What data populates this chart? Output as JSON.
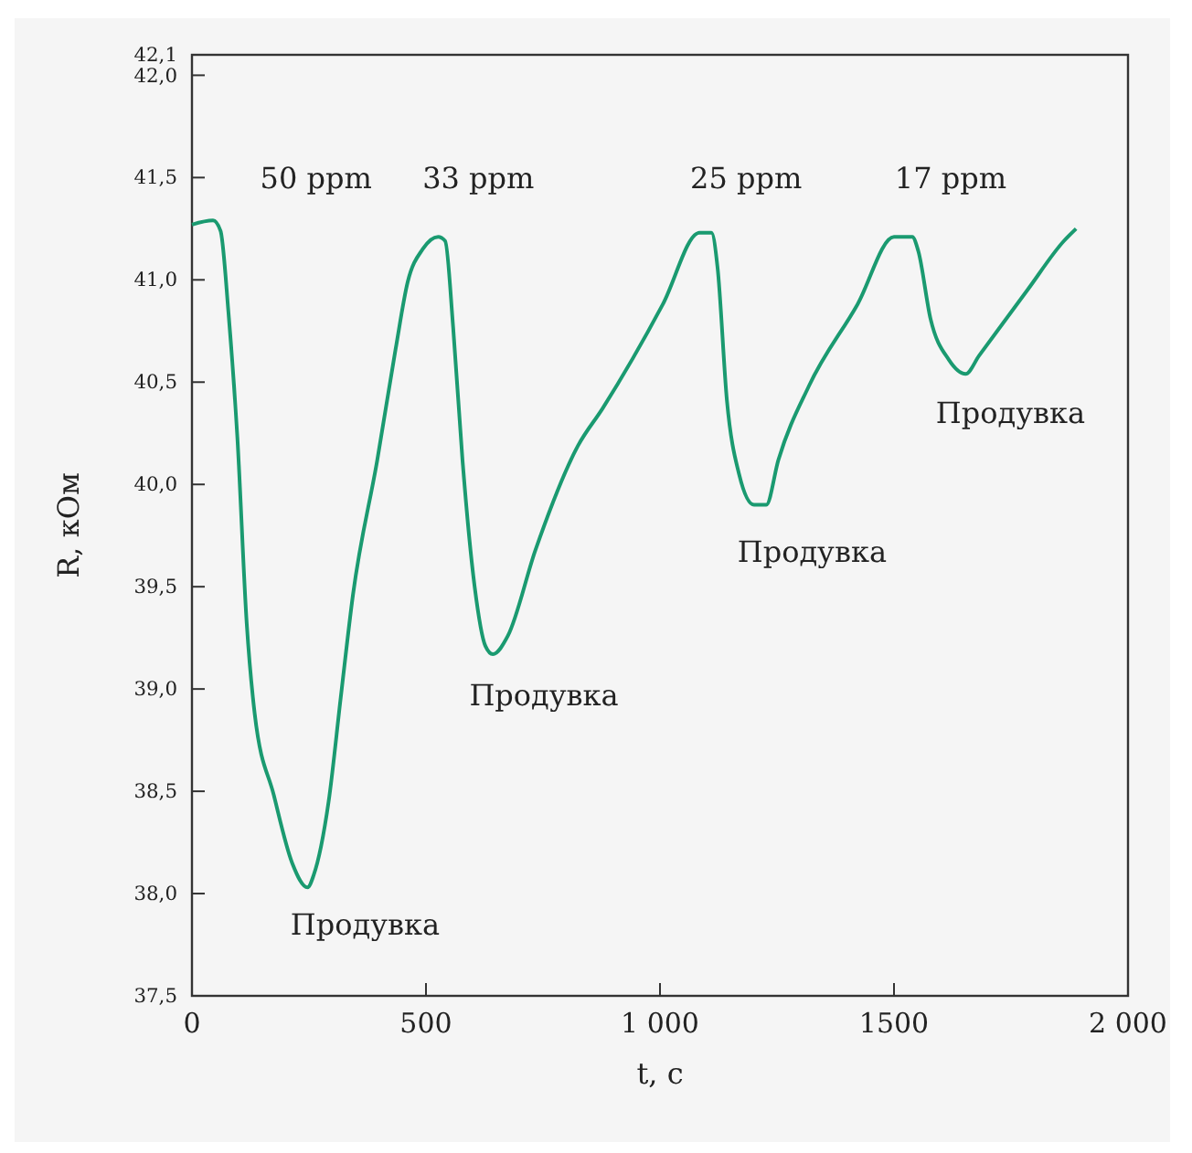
{
  "chart_data": {
    "type": "line",
    "xlabel": "t, с",
    "ylabel": "R, кОм",
    "xlim": [
      0,
      2000
    ],
    "xticks": [
      0,
      500,
      {
        "value": 1000,
        "label": "1 000"
      },
      1500,
      {
        "value": 2000,
        "label": "2 000"
      }
    ],
    "ylim": [
      37.5,
      42.1
    ],
    "yticks": [
      {
        "value": 37.5,
        "label": "37,5"
      },
      {
        "value": 38,
        "label": "38,0"
      },
      {
        "value": 38.5,
        "label": "38,5"
      },
      {
        "value": 39,
        "label": "39,0"
      },
      {
        "value": 39.5,
        "label": "39,5"
      },
      {
        "value": 40,
        "label": "40,0"
      },
      {
        "value": 40.5,
        "label": "40,5"
      },
      {
        "value": 41,
        "label": "41,0"
      },
      {
        "value": 41.5,
        "label": "41,5"
      },
      {
        "value": 42,
        "label": "42,0"
      },
      {
        "value": 42.1,
        "label": "42,1"
      }
    ],
    "grid": false,
    "marker": "none",
    "line_style": "solid",
    "series": [
      {
        "color": "#1a9a70",
        "x": [
          0,
          45,
          61,
          78,
          97,
          117,
          134,
          175,
          214,
          247,
          260,
          292,
          318,
          344,
          396,
          435,
          461,
          493,
          526,
          541,
          558,
          578,
          604,
          627,
          643,
          675,
          734,
          825,
          877,
          1006,
          1084,
          1110,
          1123,
          1143,
          1169,
          1201,
          1227,
          1253,
          1318,
          1422,
          1500,
          1539,
          1552,
          1578,
          1617,
          1653,
          1682,
          1785,
          1863,
          1889
        ],
        "values": [
          41.27,
          41.29,
          41.24,
          40.84,
          40.23,
          39.32,
          38.88,
          38.48,
          38.15,
          38.03,
          38.09,
          38.45,
          38.96,
          39.46,
          40.12,
          40.66,
          40.99,
          41.15,
          41.21,
          41.19,
          40.77,
          40.12,
          39.5,
          39.21,
          39.17,
          39.26,
          39.68,
          40.19,
          40.37,
          40.88,
          41.23,
          41.23,
          41.06,
          40.41,
          40.05,
          39.9,
          39.9,
          40.12,
          40.48,
          40.88,
          41.21,
          41.21,
          41.14,
          40.81,
          40.61,
          40.54,
          40.63,
          40.95,
          41.19,
          41.25
        ]
      }
    ],
    "annotations": [
      "50 ppm",
      "33 ppm",
      "25 ppm",
      "17 ppm",
      "Продувка",
      "Продувка",
      "Продувка",
      "Продувка"
    ]
  }
}
